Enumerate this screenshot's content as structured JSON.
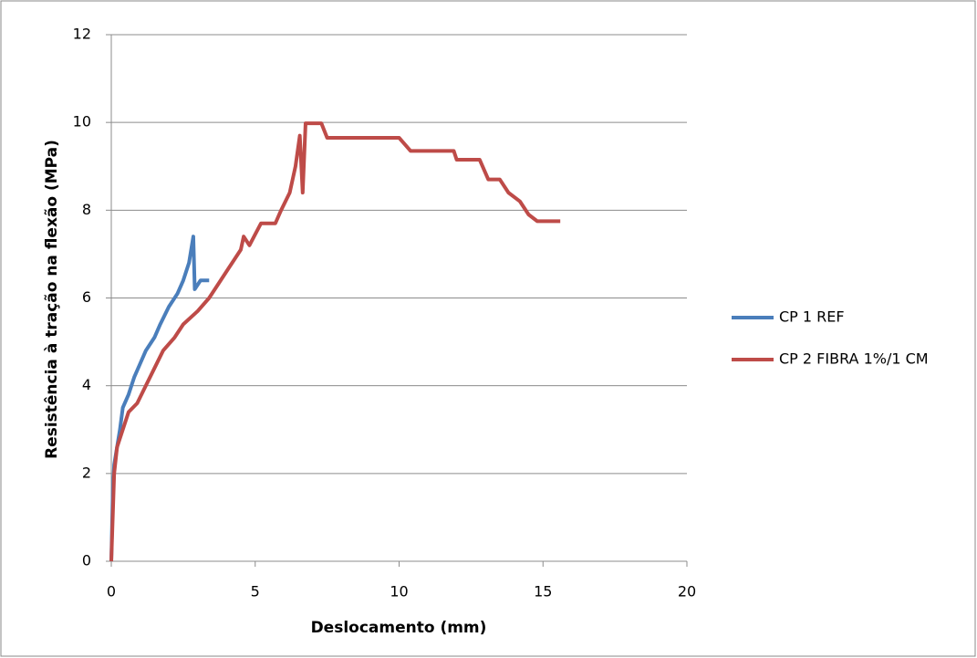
{
  "chart_data": {
    "type": "line",
    "xlabel": "Deslocamento (mm)",
    "ylabel": "Resistência à tração na flexão (MPa)",
    "xlim": [
      0,
      20
    ],
    "xticks": [
      0,
      5,
      10,
      15,
      20
    ],
    "ylim": [
      0,
      12
    ],
    "yticks": [
      0,
      2,
      4,
      6,
      8,
      10,
      12
    ],
    "grid": true,
    "legend": "right",
    "series": [
      {
        "name": "CP 1 REF",
        "color": "#4a7ebb",
        "x": [
          0,
          0.05,
          0.1,
          0.2,
          0.3,
          0.4,
          0.6,
          0.8,
          1.0,
          1.2,
          1.5,
          1.7,
          2.0,
          2.3,
          2.5,
          2.7,
          2.85,
          2.9,
          3.1,
          3.4
        ],
        "values": [
          0,
          1.5,
          2.2,
          2.6,
          3.0,
          3.5,
          3.8,
          4.2,
          4.5,
          4.8,
          5.1,
          5.4,
          5.8,
          6.1,
          6.4,
          6.8,
          7.4,
          6.2,
          6.4,
          6.4
        ]
      },
      {
        "name": "CP 2 FIBRA 1%/1 CM",
        "color": "#be4b48",
        "x": [
          0,
          0.1,
          0.2,
          0.4,
          0.6,
          0.9,
          1.2,
          1.5,
          1.8,
          2.2,
          2.5,
          3.0,
          3.4,
          3.8,
          4.2,
          4.5,
          4.6,
          4.8,
          5.2,
          5.7,
          5.9,
          6.2,
          6.4,
          6.55,
          6.65,
          6.75,
          7.3,
          7.5,
          10.0,
          10.2,
          10.4,
          11.9,
          12.0,
          12.8,
          13.1,
          13.5,
          13.8,
          14.2,
          14.5,
          14.8,
          15.6
        ],
        "values": [
          0,
          2.0,
          2.6,
          3.0,
          3.4,
          3.6,
          4.0,
          4.4,
          4.8,
          5.1,
          5.4,
          5.7,
          6.0,
          6.4,
          6.8,
          7.1,
          7.4,
          7.2,
          7.7,
          7.7,
          8.0,
          8.4,
          9.0,
          9.7,
          8.4,
          9.98,
          9.98,
          9.65,
          9.65,
          9.5,
          9.35,
          9.35,
          9.15,
          9.15,
          8.7,
          8.7,
          8.4,
          8.2,
          7.9,
          7.75,
          7.75
        ]
      }
    ]
  }
}
